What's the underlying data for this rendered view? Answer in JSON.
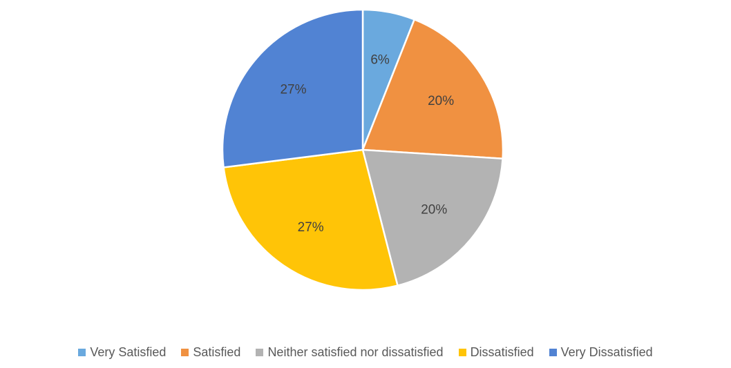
{
  "chart_data": {
    "type": "pie",
    "title": "",
    "start_angle": "12 o'clock, clockwise",
    "legend_position": "bottom",
    "slices": [
      {
        "name": "Very Satisfied",
        "value": 6,
        "label": "6%",
        "color": "#6aa9de"
      },
      {
        "name": "Satisfied",
        "value": 20,
        "label": "20%",
        "color": "#f09141"
      },
      {
        "name": "Neither satisfied nor dissatisfied",
        "value": 20,
        "label": "20%",
        "color": "#b3b3b3"
      },
      {
        "name": "Dissatisfied",
        "value": 27,
        "label": "27%",
        "color": "#ffc407"
      },
      {
        "name": "Very Dissatisfied",
        "value": 27,
        "label": "27%",
        "color": "#5183d3"
      }
    ]
  }
}
